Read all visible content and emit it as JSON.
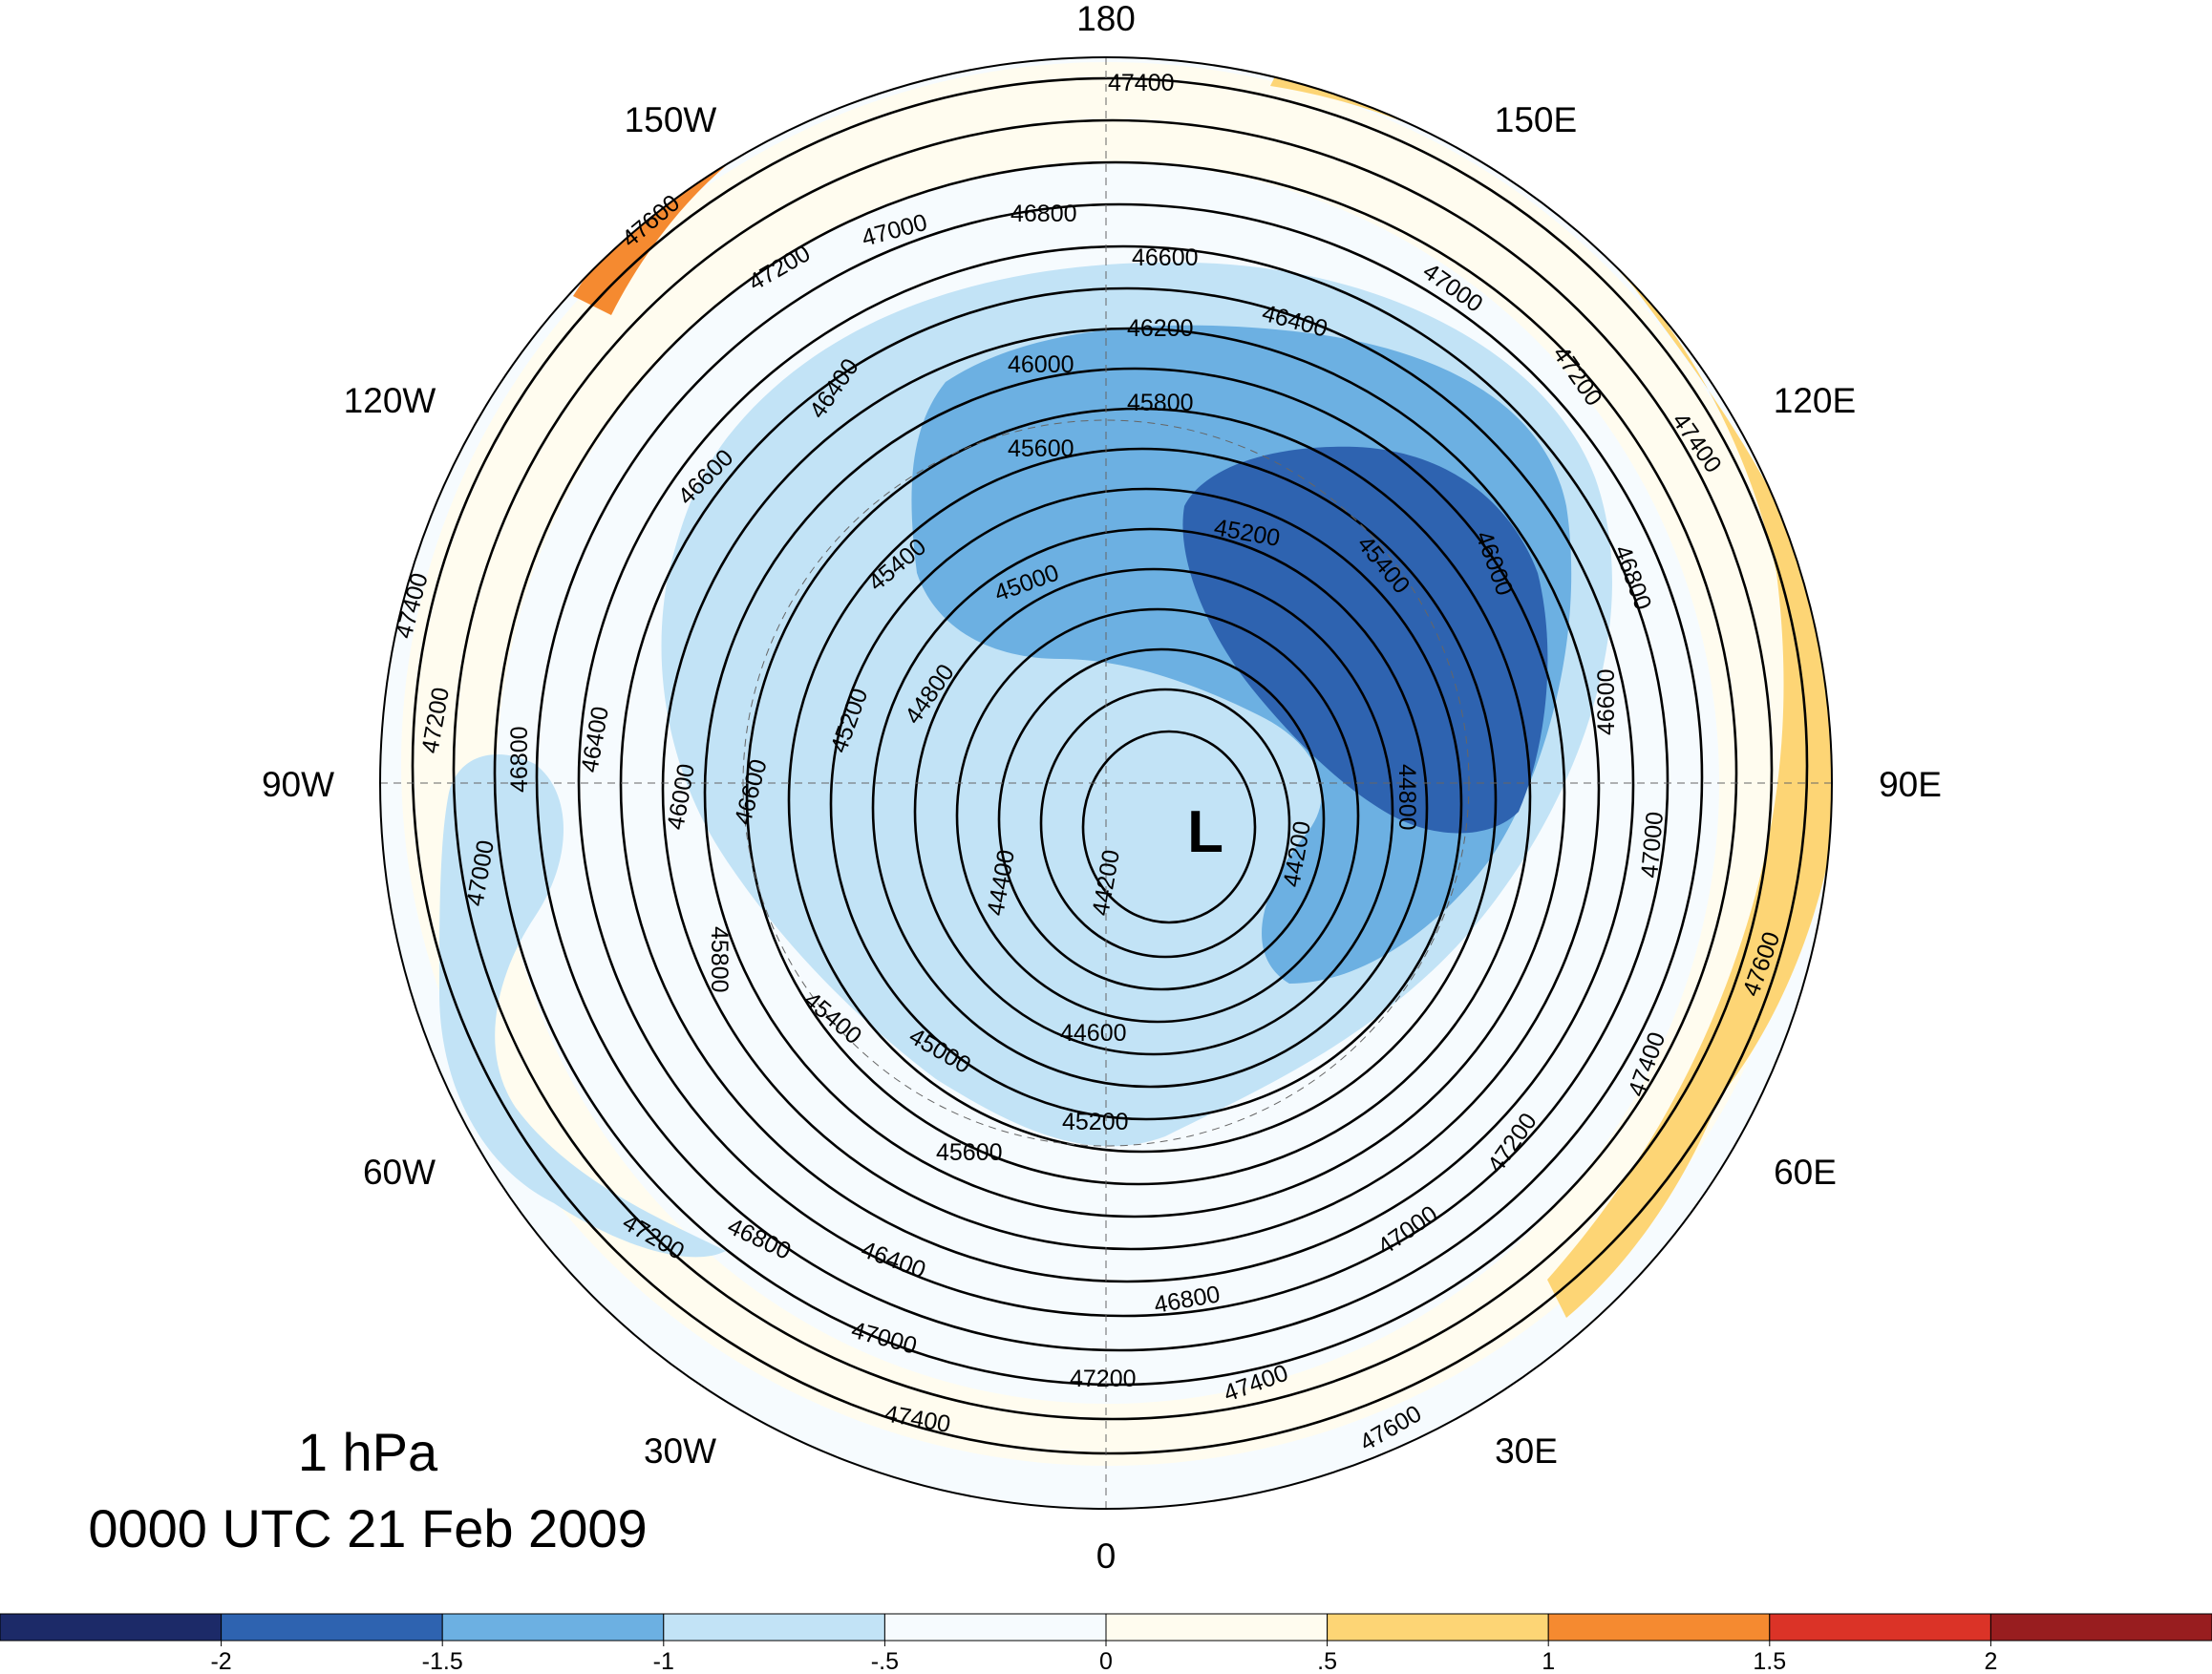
{
  "title": {
    "level": "1 hPa",
    "time": "0000 UTC 21 Feb 2009"
  },
  "map": {
    "projection": "north polar stereographic",
    "longitude_labels": [
      "180",
      "150E",
      "120E",
      "90E",
      "60E",
      "30E",
      "0",
      "30W",
      "60W",
      "90W",
      "120W",
      "150W"
    ],
    "low_marker": "L",
    "contour_labels": [
      "47600",
      "47400",
      "47200",
      "47000",
      "46800",
      "46600",
      "46400",
      "46200",
      "46000",
      "45800",
      "45600",
      "45400",
      "45200",
      "45000",
      "44800",
      "44600",
      "44400",
      "44200"
    ],
    "contour_interval": 200
  },
  "colorbar": {
    "tick_labels": [
      "-2",
      "-1.5",
      "-1",
      "-.5",
      "0",
      ".5",
      "1",
      "1.5",
      "2"
    ],
    "colors": [
      "#1c2a68",
      "#2e63b0",
      "#6cb0e2",
      "#c2e3f6",
      "#f6fbfe",
      "#fffcef",
      "#fdd575",
      "#f58a30",
      "#db3327",
      "#981d1f"
    ]
  }
}
